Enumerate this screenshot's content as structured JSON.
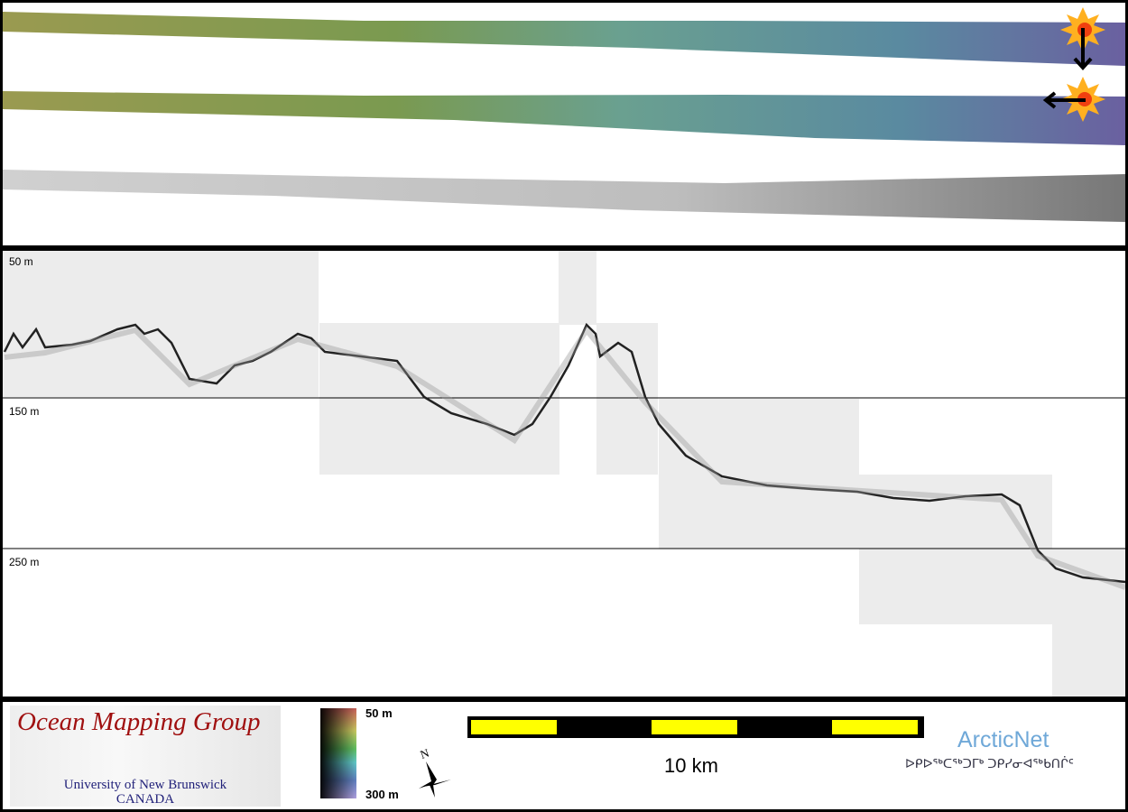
{
  "profile": {
    "depth_labels": [
      "50 m",
      "150 m",
      "250 m"
    ]
  },
  "legend": {
    "logo_title": "Ocean Mapping Group",
    "logo_university": "University of New Brunswick",
    "logo_country": "CANADA",
    "colorbar_min": "50 m",
    "colorbar_max": "300 m",
    "north_label": "N",
    "scale_label": "10 km",
    "partner_name": "ArcticNet",
    "partner_syllabics": "ᐅᑭᐅᖅᑕᖅᑐᒥᒃ ᑐᑭᓯᓂᐊᖅᑲᑎᒌᑦ"
  },
  "colors": {
    "scale_fill": "#ffff00",
    "logo_title": "#a01010",
    "partner": "#6fa8d8"
  }
}
